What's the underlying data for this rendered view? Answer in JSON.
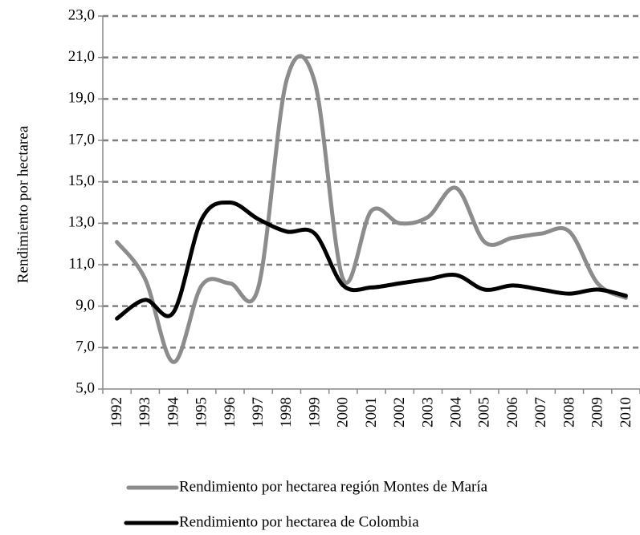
{
  "chart_data": {
    "type": "line",
    "ylabel": "Rendimiento por hectarea",
    "categories": [
      "1992",
      "1993",
      "1994",
      "1995",
      "1996",
      "1997",
      "1998",
      "1999",
      "2000",
      "2001",
      "2002",
      "2003",
      "2004",
      "2005",
      "2006",
      "2007",
      "2008",
      "2009",
      "2010"
    ],
    "series": [
      {
        "name": "Rendimiento por hectarea región Montes de María",
        "color": "#8c8c8c",
        "values": [
          12.1,
          10.3,
          6.3,
          10.0,
          10.1,
          9.9,
          19.9,
          19.8,
          10.3,
          13.6,
          13.0,
          13.3,
          14.7,
          12.1,
          12.3,
          12.5,
          12.6,
          10.1,
          9.4
        ]
      },
      {
        "name": "Rendimiento por hectarea de Colombia",
        "color": "#000000",
        "values": [
          8.4,
          9.3,
          8.7,
          13.2,
          14.0,
          13.2,
          12.6,
          12.5,
          10.0,
          9.9,
          10.1,
          10.3,
          10.5,
          9.8,
          10.0,
          9.8,
          9.6,
          9.8,
          9.5
        ]
      }
    ],
    "ylim": [
      5,
      23
    ],
    "yticks": [
      {
        "value": 5,
        "label": "5,0"
      },
      {
        "value": 7,
        "label": "7,0"
      },
      {
        "value": 9,
        "label": "9,0"
      },
      {
        "value": 11,
        "label": "11,0"
      },
      {
        "value": 13,
        "label": "13,0"
      },
      {
        "value": 15,
        "label": "15,0"
      },
      {
        "value": 17,
        "label": "17,0"
      },
      {
        "value": 19,
        "label": "19,0"
      },
      {
        "value": 21,
        "label": "21,0"
      },
      {
        "value": 23,
        "label": "23,0"
      }
    ],
    "grid": true
  }
}
